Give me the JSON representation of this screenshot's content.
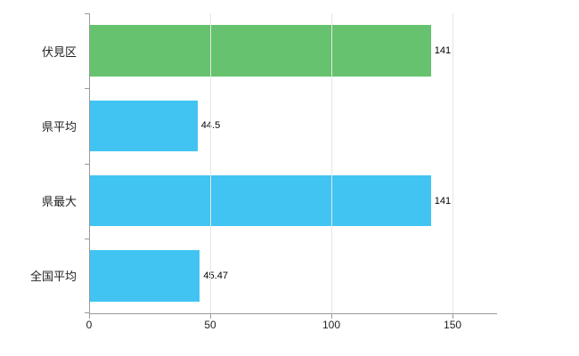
{
  "chart_data": {
    "type": "bar",
    "orientation": "horizontal",
    "title": "",
    "xlabel": "",
    "ylabel": "",
    "categories": [
      "伏見区",
      "県平均",
      "県最大",
      "全国平均"
    ],
    "values": [
      141,
      44.5,
      141,
      45.47
    ],
    "value_labels": [
      "141",
      "44.5",
      "141",
      "45.47"
    ],
    "bar_colors": [
      "#66c26e",
      "#41c4f2",
      "#41c4f2",
      "#41c4f2"
    ],
    "xlim": [
      0,
      168
    ],
    "x_ticks": [
      0,
      50,
      100,
      150
    ],
    "x_tick_labels": [
      "0",
      "50",
      "100",
      "150"
    ],
    "grid": true,
    "legend": "none",
    "colors": {
      "axis": "#9a9a9a",
      "gridline": "#e6e6e6",
      "text": "#222222"
    }
  }
}
